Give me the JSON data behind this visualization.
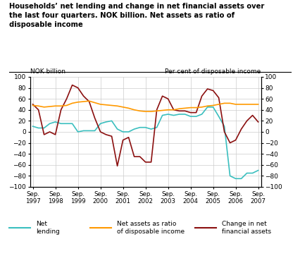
{
  "title": "Households’ net lending and change in net financial assets over\nthe last four quarters. NOK billion. Net assets as ratio of\ndisposable income",
  "ylabel_left": "NOK billion",
  "ylabel_right": "Per cent of disposable income",
  "x_labels": [
    "Sep.\n1997",
    "Sep.\n1998",
    "Sep.\n1999",
    "Sep.\n2000",
    "Sep.\n2001",
    "Sep.\n2002",
    "Sep.\n2003",
    "Sep.\n2004",
    "Sep.\n2005",
    "Sep.\n2006",
    "Sep.\n2007"
  ],
  "x_tick_pos": [
    0,
    4,
    8,
    12,
    16,
    20,
    24,
    28,
    32,
    36,
    40
  ],
  "net_lending": [
    10,
    7,
    7,
    15,
    18,
    15,
    15,
    15,
    0,
    2,
    2,
    2,
    15,
    18,
    20,
    5,
    0,
    0,
    5,
    8,
    8,
    5,
    8,
    30,
    32,
    30,
    32,
    32,
    28,
    28,
    32,
    45,
    45,
    28,
    10,
    -80,
    -85,
    -85,
    -75,
    -75,
    -70
  ],
  "net_assets": [
    48,
    47,
    45,
    46,
    47,
    47,
    48,
    52,
    54,
    55,
    56,
    53,
    50,
    49,
    48,
    47,
    45,
    43,
    40,
    38,
    37,
    37,
    38,
    39,
    40,
    40,
    42,
    43,
    44,
    44,
    45,
    47,
    48,
    50,
    52,
    52,
    50,
    50,
    50,
    50,
    50
  ],
  "change_net_assets": [
    50,
    40,
    -5,
    0,
    -5,
    40,
    60,
    85,
    80,
    65,
    55,
    25,
    0,
    -5,
    -8,
    -62,
    -15,
    -10,
    -45,
    -45,
    -55,
    -55,
    40,
    65,
    60,
    40,
    38,
    38,
    35,
    35,
    65,
    78,
    75,
    62,
    0,
    -20,
    -15,
    5,
    20,
    30,
    18
  ],
  "net_lending_color": "#3BBFBF",
  "net_assets_color": "#FF9900",
  "change_net_assets_color": "#8B1010",
  "ylim": [
    -100,
    100
  ],
  "yticks": [
    -100,
    -80,
    -60,
    -40,
    -20,
    0,
    20,
    40,
    60,
    80,
    100
  ],
  "background_color": "#FFFFFF",
  "grid_color": "#CCCCCC",
  "legend_items": [
    "Net\nlending",
    "Net assets as ratio\nof disposable income",
    "Change in net\nfinancial assets"
  ]
}
